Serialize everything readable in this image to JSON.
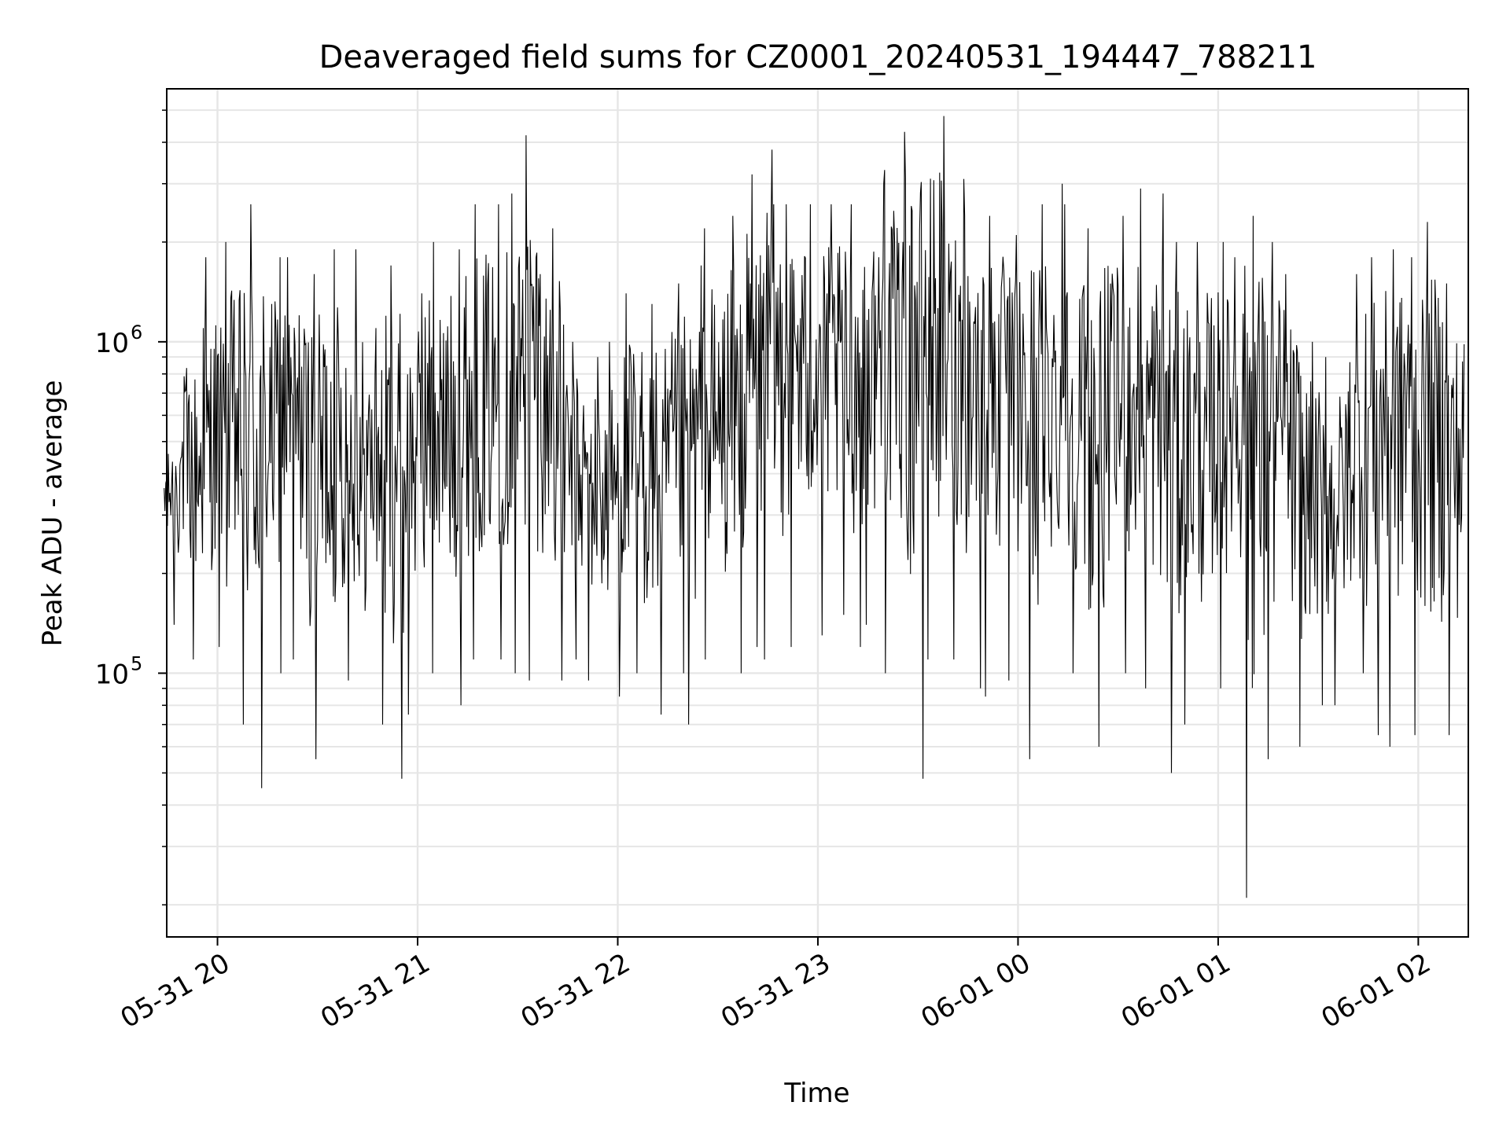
{
  "chart_data": {
    "type": "line",
    "title": "Deaveraged field sums for CZ0001_20240531_194447_788211",
    "xlabel": "Time",
    "ylabel": "Peak ADU - average",
    "x_range": [
      "2024-05-31 19:44:47",
      "2024-06-01 02:15:00"
    ],
    "y_scale": "log",
    "ylim": [
      16000,
      5800000
    ],
    "grid": true,
    "line_color": "#000000",
    "x_ticks": [
      {
        "label": "05-31 20",
        "value": "2024-05-31 20:00"
      },
      {
        "label": "05-31 21",
        "value": "2024-05-31 21:00"
      },
      {
        "label": "05-31 22",
        "value": "2024-05-31 22:00"
      },
      {
        "label": "05-31 23",
        "value": "2024-05-31 23:00"
      },
      {
        "label": "06-01 00",
        "value": "2024-06-01 00:00"
      },
      {
        "label": "06-01 01",
        "value": "2024-06-01 01:00"
      },
      {
        "label": "06-01 02",
        "value": "2024-06-01 02:00"
      }
    ],
    "y_ticks": [
      {
        "base": "10",
        "exp": "5",
        "value": 100000
      },
      {
        "base": "10",
        "exp": "6",
        "value": 1000000
      }
    ],
    "series": [
      {
        "x": [
          "2024-05-31 19:44",
          "2024-05-31 19:50",
          "2024-05-31 19:56",
          "2024-05-31 20:02",
          "2024-05-31 20:08",
          "2024-05-31 20:14",
          "2024-05-31 20:20",
          "2024-05-31 20:26",
          "2024-05-31 20:32",
          "2024-05-31 20:38",
          "2024-05-31 20:44",
          "2024-05-31 20:50",
          "2024-05-31 20:56",
          "2024-05-31 21:02",
          "2024-05-31 21:08",
          "2024-05-31 21:14",
          "2024-05-31 21:20",
          "2024-05-31 21:26",
          "2024-05-31 21:32",
          "2024-05-31 21:38",
          "2024-05-31 21:44",
          "2024-05-31 21:50",
          "2024-05-31 21:56",
          "2024-05-31 22:02",
          "2024-05-31 22:08",
          "2024-05-31 22:14",
          "2024-05-31 22:20",
          "2024-05-31 22:26",
          "2024-05-31 22:32",
          "2024-05-31 22:38",
          "2024-05-31 22:44",
          "2024-05-31 22:50",
          "2024-05-31 22:56",
          "2024-05-31 23:02",
          "2024-05-31 23:08",
          "2024-05-31 23:14",
          "2024-05-31 23:20",
          "2024-05-31 23:26",
          "2024-05-31 23:32",
          "2024-05-31 23:38",
          "2024-05-31 23:44",
          "2024-05-31 23:50",
          "2024-05-31 23:56",
          "2024-06-01 00:02",
          "2024-06-01 00:08",
          "2024-06-01 00:14",
          "2024-06-01 00:20",
          "2024-06-01 00:26",
          "2024-06-01 00:32",
          "2024-06-01 00:38",
          "2024-06-01 00:44",
          "2024-06-01 00:50",
          "2024-06-01 00:56",
          "2024-06-01 01:02",
          "2024-06-01 01:08",
          "2024-06-01 01:14",
          "2024-06-01 01:20",
          "2024-06-01 01:26",
          "2024-06-01 01:32",
          "2024-06-01 01:38",
          "2024-06-01 01:44",
          "2024-06-01 01:50",
          "2024-06-01 01:56",
          "2024-06-01 02:02",
          "2024-06-01 02:08",
          "2024-06-01 02:14"
        ],
        "y": [
          350000,
          450000,
          400000,
          550000,
          600000,
          500000,
          650000,
          550000,
          520000,
          480000,
          450000,
          500000,
          480000,
          550000,
          600000,
          650000,
          700000,
          750000,
          900000,
          850000,
          450000,
          380000,
          350000,
          400000,
          420000,
          380000,
          450000,
          500000,
          550000,
          700000,
          850000,
          900000,
          950000,
          850000,
          800000,
          900000,
          1000000,
          1200000,
          1300000,
          1100000,
          900000,
          850000,
          800000,
          700000,
          650000,
          600000,
          550000,
          600000,
          650000,
          600000,
          550000,
          500000,
          520000,
          650000,
          700000,
          600000,
          500000,
          350000,
          300000,
          400000,
          550000,
          600000,
          650000,
          550000,
          500000,
          450000
        ],
        "y_max": [
          500000,
          1100000,
          1800000,
          2000000,
          2600000,
          1800000,
          1800000,
          1600000,
          1900000,
          1900000,
          1100000,
          1700000,
          1400000,
          2000000,
          1900000,
          2600000,
          2600000,
          2800000,
          4200000,
          2200000,
          1000000,
          900000,
          1000000,
          1400000,
          1300000,
          1500000,
          1700000,
          2200000,
          2400000,
          3200000,
          3800000,
          2600000,
          2600000,
          2600000,
          2600000,
          3000000,
          3300000,
          4300000,
          4800000,
          3100000,
          2400000,
          2400000,
          2100000,
          2600000,
          3000000,
          2600000,
          2200000,
          2400000,
          2900000,
          2800000,
          2000000,
          2000000,
          2000000,
          1800000,
          2400000,
          2000000,
          1600000,
          1000000,
          900000,
          1600000,
          1800000,
          1900000,
          1800000,
          2300000,
          1500000,
          900000
        ],
        "y_min": [
          140000,
          110000,
          120000,
          70000,
          45000,
          100000,
          110000,
          55000,
          70000,
          95000,
          70000,
          48000,
          75000,
          100000,
          80000,
          110000,
          110000,
          100000,
          95000,
          95000,
          110000,
          95000,
          85000,
          100000,
          75000,
          100000,
          70000,
          110000,
          100000,
          120000,
          110000,
          120000,
          130000,
          150000,
          120000,
          140000,
          100000,
          48000,
          110000,
          110000,
          90000,
          85000,
          95000,
          55000,
          110000,
          100000,
          60000,
          110000,
          100000,
          90000,
          50000,
          70000,
          90000,
          90000,
          21000,
          55000,
          60000,
          80000,
          80000,
          100000,
          65000,
          60000,
          65000,
          60000,
          65000,
          80000
        ]
      }
    ]
  }
}
